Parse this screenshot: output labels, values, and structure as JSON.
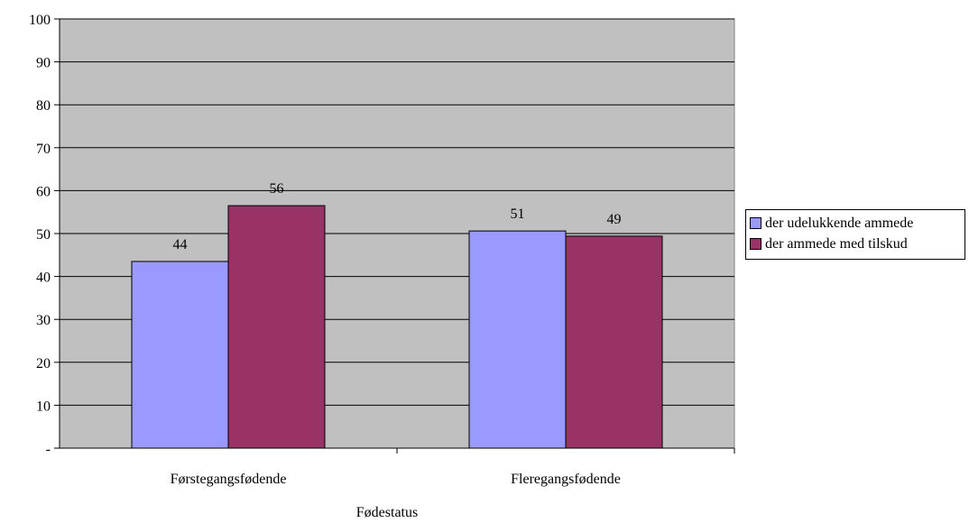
{
  "chart_data": {
    "type": "bar",
    "categories": [
      "Førstegangsfødende",
      "Fleregangsfødende"
    ],
    "series": [
      {
        "name": "der udelukkende ammede",
        "values": [
          43.5,
          50.6
        ],
        "labels": [
          "44",
          "51"
        ],
        "color": "#9999ff"
      },
      {
        "name": "der ammede med tilskud",
        "values": [
          56.5,
          49.4
        ],
        "labels": [
          "56",
          "49"
        ],
        "color": "#993366"
      }
    ],
    "ylim": [
      0,
      100
    ],
    "yticks": [
      0,
      10,
      20,
      30,
      40,
      50,
      60,
      70,
      80,
      90,
      100
    ],
    "ytick_labels": [
      "-",
      "10",
      "20",
      "30",
      "40",
      "50",
      "60",
      "70",
      "80",
      "90",
      "100"
    ],
    "xlabel": "Fødestatus",
    "ylabel": "",
    "title": "",
    "grid": "horizontal",
    "legend_position": "right",
    "plot_background": "#c0c0c0"
  }
}
